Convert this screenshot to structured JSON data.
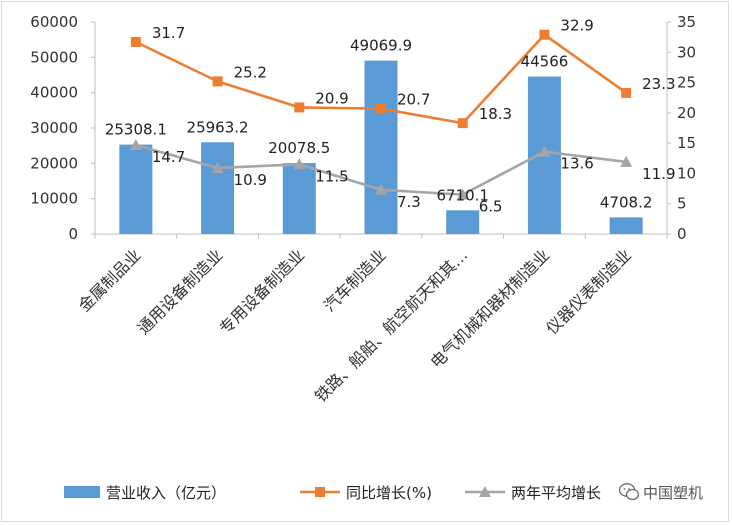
{
  "chart_data": {
    "type": "bar",
    "title": "",
    "categories": [
      "金属制品业",
      "通用设备制造业",
      "专用设备制造业",
      "汽车制造业",
      "铁路、船舶、航空航天和其…",
      "电气机械和器材制造业",
      "仪器仪表制造业"
    ],
    "series": [
      {
        "name": "营业收入（亿元）",
        "type": "bar",
        "axis": "left",
        "color": "#5b9bd5",
        "values": [
          25308.1,
          25963.2,
          20078.5,
          49069.9,
          6710.1,
          44566,
          4708.2
        ],
        "labels": [
          "25308.1",
          "25963.2",
          "20078.5",
          "49069.9",
          "6710.1",
          "44566",
          "4708.2"
        ]
      },
      {
        "name": "同比增长(%)",
        "type": "line",
        "axis": "right",
        "color": "#ed7d31",
        "marker": "square",
        "values": [
          31.7,
          25.2,
          20.9,
          20.7,
          18.3,
          32.9,
          23.3
        ],
        "labels": [
          "31.7",
          "25.2",
          "20.9",
          "20.7",
          "18.3",
          "32.9",
          "23.3"
        ]
      },
      {
        "name": "两年平均增长",
        "type": "line",
        "axis": "right",
        "color": "#a5a5a5",
        "marker": "triangle",
        "values": [
          14.7,
          10.9,
          11.5,
          7.3,
          6.5,
          13.6,
          11.9
        ],
        "labels": [
          "14.7",
          "10.9",
          "11.5",
          "7.3",
          "6.5",
          "13.6",
          "11.9"
        ]
      }
    ],
    "y_left": {
      "range": [
        0,
        60000
      ],
      "ticks": [
        "0",
        "10000",
        "20000",
        "30000",
        "40000",
        "50000",
        "60000"
      ]
    },
    "y_right": {
      "range": [
        0,
        35
      ],
      "ticks": [
        "0",
        "5",
        "10",
        "15",
        "20",
        "25",
        "30",
        "35"
      ]
    },
    "grid": false,
    "legend_position": "bottom"
  },
  "watermark": {
    "text": "中国塑机"
  }
}
